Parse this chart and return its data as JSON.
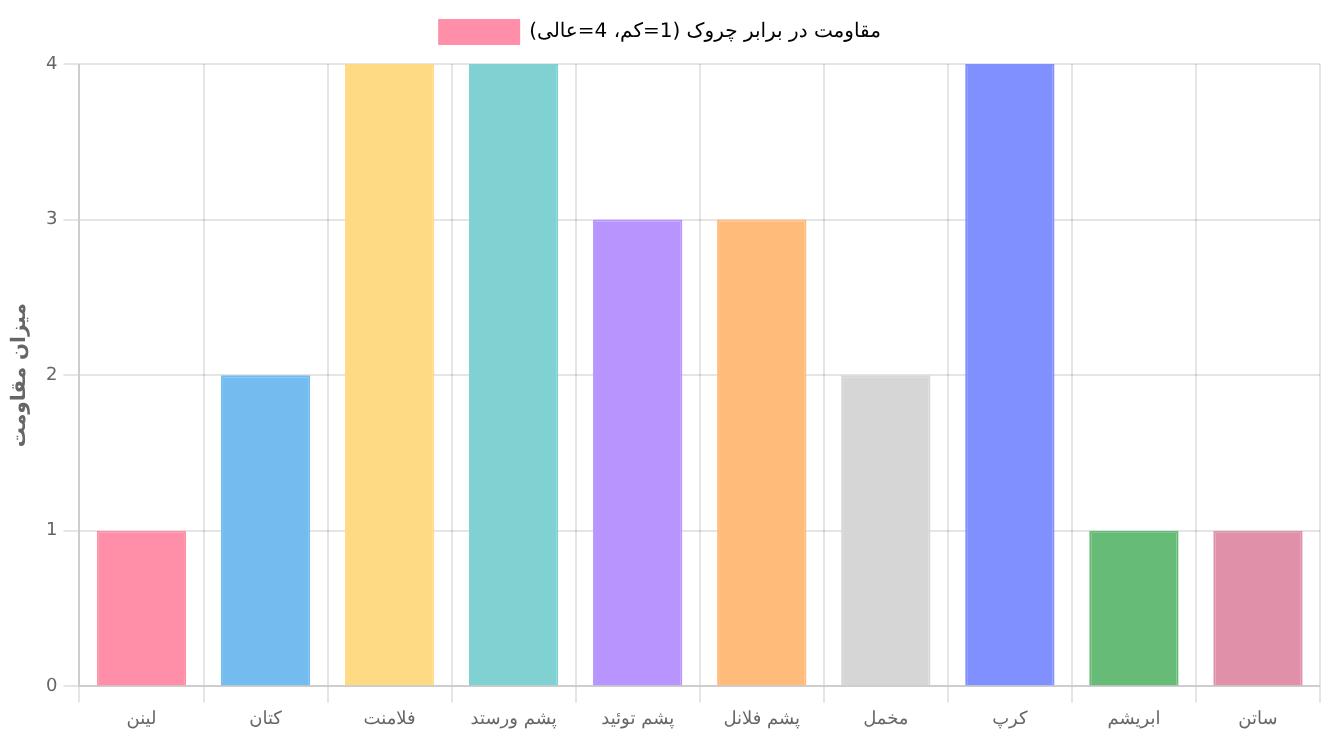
{
  "chart_data": {
    "type": "bar",
    "ylabel": "میزان مقاومت",
    "categories": [
      "لینن",
      "کتان",
      "فلامنت",
      "پشم ورستد",
      "پشم توئید",
      "پشم فلانل",
      "مخمل",
      "کرپ",
      "ابریشم",
      "ساتن"
    ],
    "series": [
      {
        "name": "مقاومت در برابر چروک (1=کم، 4=عالی)",
        "values": [
          1,
          2,
          4,
          4,
          3,
          3,
          2,
          4,
          1,
          1
        ],
        "colors": [
          "#ff8fa8",
          "#73bcf0",
          "#ffda85",
          "#80d2d2",
          "#b894ff",
          "#ffbb7a",
          "#d6d6d6",
          "#8090ff",
          "#66bb77",
          "#e090a8"
        ]
      }
    ],
    "ylim": [
      0,
      4
    ],
    "yticks": [
      0,
      1,
      2,
      3,
      4
    ],
    "grid": true,
    "legend": "top"
  }
}
